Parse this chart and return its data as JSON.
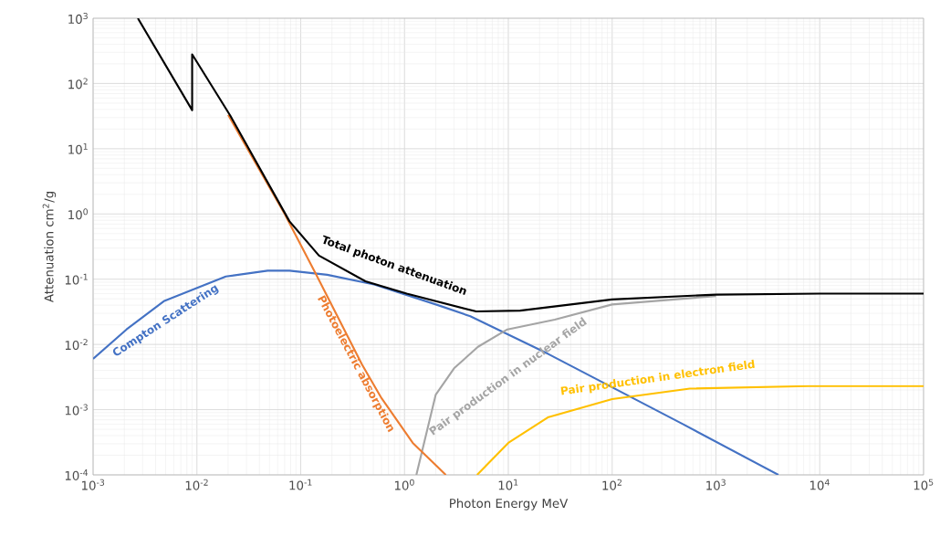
{
  "chart_data": {
    "type": "line",
    "xlabel": "Photon Energy  MeV",
    "ylabel": "Attenuation cm$^{2}$/g",
    "log": "xy",
    "grid": true,
    "legend": false,
    "marker": "none",
    "line_style": "solid",
    "xlim": [
      0.001,
      100000
    ],
    "ylim": [
      0.0001,
      1000
    ],
    "xticks": [
      {
        "value": 0.001,
        "label": "10$^{-3}$"
      },
      {
        "value": 0.01,
        "label": "10$^{-2}$"
      },
      {
        "value": 0.1,
        "label": "10$^{-1}$"
      },
      {
        "value": 1,
        "label": "10$^{0}$"
      },
      {
        "value": 10,
        "label": "10$^{1}$"
      },
      {
        "value": 100,
        "label": "10$^{2}$"
      },
      {
        "value": 1000,
        "label": "10$^{3}$"
      },
      {
        "value": 10000,
        "label": "10$^{4}$"
      },
      {
        "value": 100000,
        "label": "10$^{5}$"
      }
    ],
    "yticks": [
      {
        "value": 0.0001,
        "label": "10$^{-4}$"
      },
      {
        "value": 0.001,
        "label": "10$^{-3}$"
      },
      {
        "value": 0.01,
        "label": "10$^{-2}$"
      },
      {
        "value": 0.1,
        "label": "10$^{-1}$"
      },
      {
        "value": 1,
        "label": "10$^{0}$"
      },
      {
        "value": 10,
        "label": "10$^{1}$"
      },
      {
        "value": 100,
        "label": "10$^{2}$"
      },
      {
        "value": 1000,
        "label": "10$^{3}$"
      }
    ],
    "series": [
      {
        "name": "Compton Scattering",
        "color": "#4472c4",
        "x": [
          0.001,
          0.0021,
          0.0048,
          0.019,
          0.048,
          0.078,
          0.18,
          0.51,
          2.1,
          4.3,
          24,
          480,
          4000
        ],
        "values": [
          0.006,
          0.017,
          0.046,
          0.11,
          0.135,
          0.135,
          0.117,
          0.083,
          0.04,
          0.027,
          0.0072,
          0.0006,
          0.0001
        ]
      },
      {
        "name": "Pair production in nuclear field",
        "color": "#a5a5a5",
        "x": [
          1.3,
          2,
          3,
          5.1,
          9.8,
          28,
          100,
          1000
        ],
        "values": [
          0.0001,
          0.0017,
          0.0043,
          0.0092,
          0.017,
          0.024,
          0.041,
          0.055
        ]
      },
      {
        "name": "Pair production in electron field",
        "color": "#ffc000",
        "x": [
          5,
          10,
          24,
          100,
          560,
          7700,
          100000
        ],
        "values": [
          0.0001,
          0.00031,
          0.00076,
          0.00145,
          0.0021,
          0.0023,
          0.0023
        ]
      },
      {
        "name": "Photoelectric absorption",
        "color": "#ed7d31",
        "x": [
          0.02,
          0.07,
          0.14,
          0.39,
          0.6,
          1.2,
          2.5
        ],
        "values": [
          33,
          1.0,
          0.12,
          0.0049,
          0.0015,
          0.00031,
          0.0001
        ]
      },
      {
        "name": "Total photon attenuation",
        "color": "#000000",
        "x": [
          0.0027,
          0.009,
          0.009,
          0.021,
          0.078,
          0.15,
          0.42,
          1.05,
          4.9,
          13,
          100,
          1000,
          10000,
          100000
        ],
        "values": [
          1000,
          39,
          280,
          32,
          0.77,
          0.23,
          0.093,
          0.06,
          0.032,
          0.033,
          0.049,
          0.058,
          0.06,
          0.06
        ]
      }
    ]
  }
}
